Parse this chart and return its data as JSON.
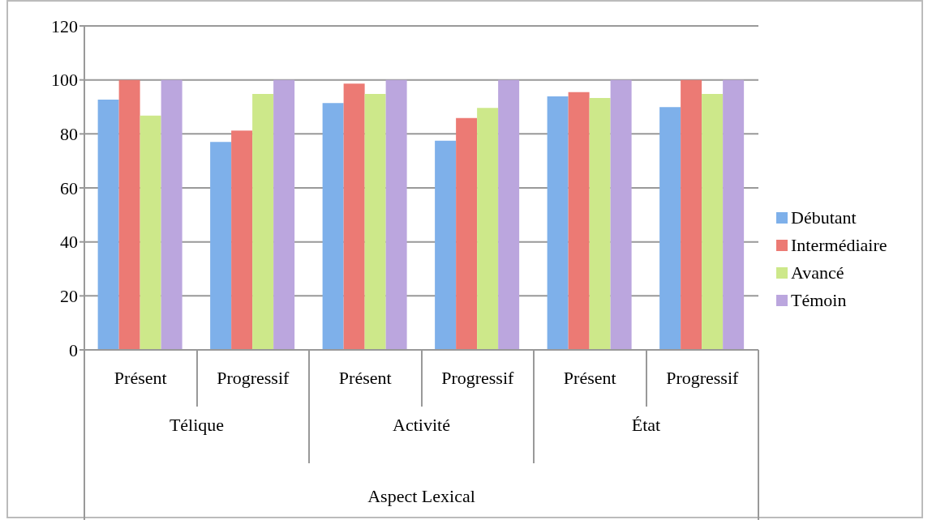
{
  "chart_data": {
    "type": "bar",
    "categories": [
      "Présent",
      "Progressif",
      "Présent",
      "Progressif",
      "Présent",
      "Progressif"
    ],
    "annotations": [
      "Télique",
      "Activité",
      "État",
      "Aspect Lexical"
    ],
    "series": [
      {
        "name": "Débutant",
        "color": "#7eb0ea",
        "values": [
          92.7,
          77,
          91.4,
          77.5,
          93.9,
          89.9
        ]
      },
      {
        "name": "Intermédiaire",
        "color": "#ec7a74",
        "values": [
          100,
          81.2,
          98.6,
          85.9,
          95.5,
          100
        ]
      },
      {
        "name": "Avancé",
        "color": "#cde88a",
        "values": [
          86.8,
          94.8,
          94.8,
          89.6,
          93.3,
          94.8
        ]
      },
      {
        "name": "Témoin",
        "color": "#bba6de",
        "values": [
          100,
          100,
          100,
          100,
          100,
          100
        ]
      }
    ],
    "ylim": [
      0,
      120
    ],
    "yticks": [
      0,
      20,
      40,
      60,
      80,
      100,
      120
    ],
    "grid": "y",
    "legend": "right"
  }
}
